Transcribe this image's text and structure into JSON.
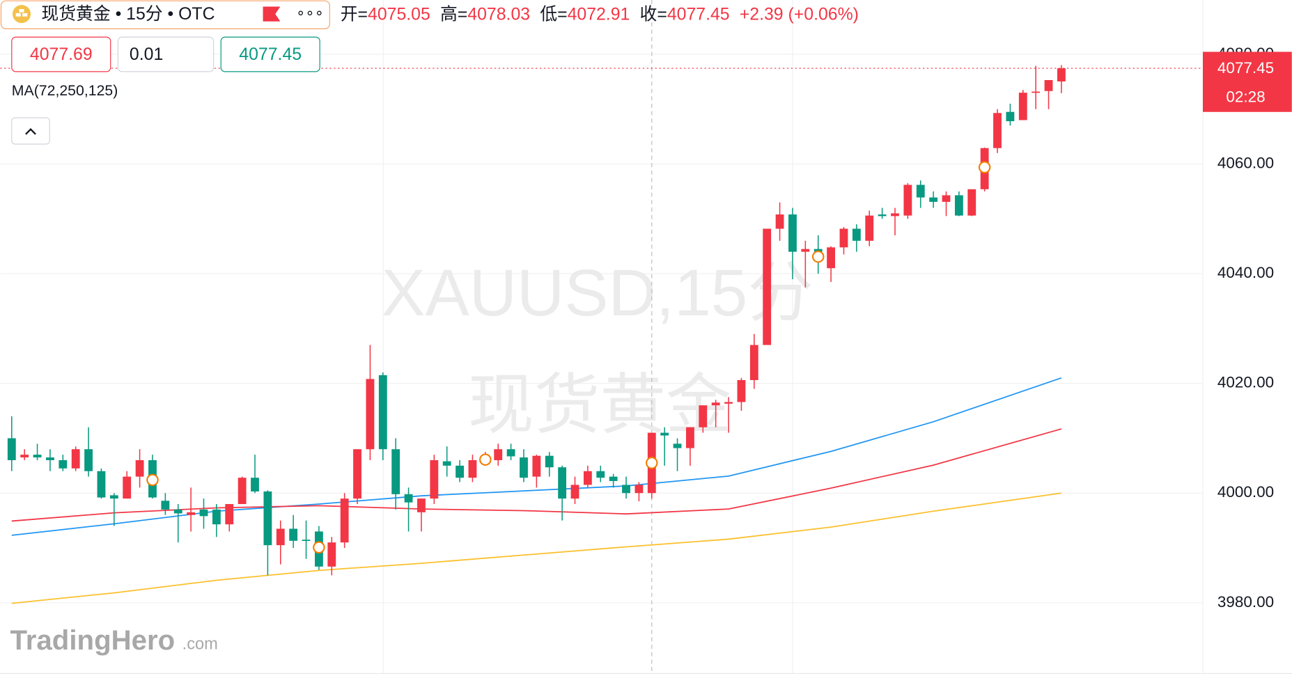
{
  "header": {
    "symbol": "现货黄金 • 15分 • OTC",
    "more": "∘∘∘",
    "ohlc": [
      {
        "label": "开=",
        "value": "4075.05"
      },
      {
        "label": "高=",
        "value": "4078.03"
      },
      {
        "label": "低=",
        "value": "4072.91"
      },
      {
        "label": "收=",
        "value": "4077.45"
      }
    ],
    "change": "+2.39 (+0.06%)"
  },
  "order": {
    "sell": "4077.69",
    "quantity": "0.01",
    "buy": "4077.45"
  },
  "brand": {
    "name": "TradingHero",
    "suffix": ".com"
  },
  "chart_data": {
    "type": "candlestick",
    "indicator_label": "MA(72,250,125)",
    "watermark": [
      "XAUUSD,15分",
      "现货黄金"
    ],
    "up_color": "#f23645",
    "down_color": "#089981",
    "open": [
      4010,
      4006.5,
      4007,
      4006.5,
      4006,
      4004.5,
      4008,
      4004,
      3999.6,
      3999,
      4003,
      4006,
      3998.6,
      3997,
      3996,
      3997,
      3997,
      3994.3,
      3998,
      4002.8,
      4000.3,
      3990.5,
      3993.5,
      3991.5,
      3993,
      3986.6,
      3991,
      3999,
      4008,
      4021.5,
      4008,
      3999.8,
      3996.5,
      3999,
      4005.8,
      4005,
      4002.8,
      4006,
      4006,
      4008,
      4006.5,
      4003,
      4006.8,
      4004.7,
      3999,
      4001.5,
      4004,
      4003,
      4001.5,
      4000,
      4000,
      4011,
      4009,
      4008.2,
      4012,
      4016,
      4016.3,
      4016.6,
      4020.6,
      4027,
      4048.2,
      4050.8,
      4044,
      4044.5,
      4041,
      4044.8,
      4048.2,
      4046,
      4050.8,
      4050.5,
      4050.6,
      4056.2,
      4053.9,
      4053.1,
      4054.3,
      4050.6,
      4055.4,
      4062.9,
      4069.5,
      4068,
      4073,
      4073.3,
      4075.05
    ],
    "high": [
      4014,
      4008,
      4009,
      4008,
      4007,
      4008.5,
      4012,
      4004.5,
      4000,
      4004,
      4008,
      4007,
      4000,
      3998,
      4001,
      3999,
      3998,
      3998,
      4003,
      4007,
      4000.5,
      3995,
      3996,
      3995,
      3994,
      3992,
      4000,
      4008,
      4027,
      4022,
      4010,
      4001,
      3999,
      4007,
      4008.5,
      4006,
      4007,
      4007.5,
      4009,
      4009,
      4008,
      4007,
      4007.5,
      4005,
      4003,
      4005,
      4005,
      4003.5,
      4003,
      4002,
      4011,
      4012,
      4010,
      4012,
      4016,
      4017,
      4017.5,
      4021,
      4029,
      4048,
      4053,
      4052,
      4046,
      4047,
      4045,
      4048.5,
      4049,
      4051.5,
      4052,
      4052,
      4056.5,
      4057,
      4055,
      4055,
      4055,
      4055,
      4063,
      4070,
      4071,
      4073.5,
      4077.9,
      4075.3,
      4078.03
    ],
    "low": [
      4004,
      4006,
      4006,
      4004,
      4004,
      4004,
      4003,
      3999,
      3994,
      3999,
      4001,
      3999,
      3996,
      3991,
      3993,
      3993.5,
      3992,
      3993,
      3998,
      4000,
      3985,
      3987,
      3990,
      3988,
      3986,
      3985,
      3990,
      3998,
      4006,
      4006,
      3997,
      3993,
      3993,
      3998,
      4003,
      4002,
      4002,
      4005,
      4005,
      4006,
      4002,
      4001,
      4003,
      3995,
      3998,
      4001,
      4002,
      4001,
      3999,
      3998.5,
      3999,
      4005,
      4004,
      4005,
      4011,
      4012,
      4011,
      4015,
      4019,
      4027,
      4046,
      4039,
      4037.5,
      4040,
      4038.5,
      4043.5,
      4044,
      4045,
      4050,
      4047,
      4050,
      4052,
      4052,
      4050.5,
      4050.5,
      4050.5,
      4055,
      4062,
      4067,
      4068,
      4070,
      4070,
      4072.91
    ],
    "close": [
      4006,
      4007,
      4006.5,
      4006,
      4004.5,
      4008,
      4004,
      3999.2,
      3999,
      4003,
      4006,
      3999.2,
      3997,
      3996.3,
      3996.5,
      3995.8,
      3994.3,
      3998,
      4002.8,
      4000.3,
      3990.5,
      3993.5,
      3991.3,
      3991.3,
      3986.6,
      3991,
      3999,
      4008,
      4020.8,
      4008,
      3999.8,
      3998.3,
      3999,
      4006,
      4005,
      4002.8,
      4006,
      4006.5,
      4008,
      4006.7,
      4002.8,
      4006.8,
      4004.7,
      3999,
      4001.5,
      4004,
      4002.8,
      4002.2,
      4000,
      4001.5,
      4011,
      4010.5,
      4008.2,
      4012,
      4016,
      4016.5,
      4016.6,
      4020.6,
      4027,
      4048.2,
      4050.8,
      4044,
      4044.5,
      4044,
      4044.8,
      4048.2,
      4046,
      4050.6,
      4050.5,
      4051,
      4056.2,
      4053.9,
      4053.1,
      4054.3,
      4050.6,
      4055.4,
      4062.9,
      4069.3,
      4067.8,
      4073,
      4073.2,
      4075.3,
      4077.45
    ],
    "series": [
      {
        "color": "#2196f3",
        "x": [
          0,
          8,
          16,
          24,
          32,
          40,
          48,
          56,
          64,
          72,
          82
        ],
        "values": [
          3992.3,
          3994.4,
          3996.7,
          3998,
          3999.5,
          4000.4,
          4001.3,
          4003.1,
          4007.6,
          4013,
          4021
        ]
      },
      {
        "color": "#f23645",
        "x": [
          0,
          8,
          16,
          24,
          32,
          40,
          48,
          56,
          64,
          72,
          82
        ],
        "values": [
          3994.9,
          3996.4,
          3997.3,
          3997.7,
          3997.1,
          3996.8,
          3996.2,
          3997.1,
          4000.9,
          4005.1,
          4011.7
        ]
      },
      {
        "color": "#fbc02d",
        "x": [
          0,
          8,
          16,
          24,
          32,
          40,
          48,
          56,
          64,
          72,
          82
        ],
        "values": [
          3979.9,
          3981.8,
          3984.1,
          3985.9,
          3987.2,
          3988.7,
          3990.2,
          3991.6,
          3993.8,
          3996.7,
          4000
        ]
      }
    ],
    "events": [
      {
        "x": 11,
        "y": 4002.4
      },
      {
        "x": 24,
        "y": 3990.1
      },
      {
        "x": 37,
        "y": 4006.1
      },
      {
        "x": 50,
        "y": 4005.5
      },
      {
        "x": 63,
        "y": 4043.1
      },
      {
        "x": 76,
        "y": 4059.4
      }
    ],
    "event_color": "#f57c00",
    "xlim": [
      -0.9,
      93.05
    ],
    "ylim": [
      3967.1,
      4089.9
    ],
    "yticks": [
      {
        "value": 3980,
        "label": "3980.00"
      },
      {
        "value": 4000,
        "label": "4000.00"
      },
      {
        "value": 4020,
        "label": "4020.00"
      },
      {
        "value": 4040,
        "label": "4040.00"
      },
      {
        "value": 4060,
        "label": "4060.00"
      },
      {
        "value": 4080,
        "label": "4080.00"
      }
    ],
    "grid": true,
    "last_price": {
      "value": 4077.45,
      "label": "4077.45"
    },
    "countdown": "02:28"
  }
}
